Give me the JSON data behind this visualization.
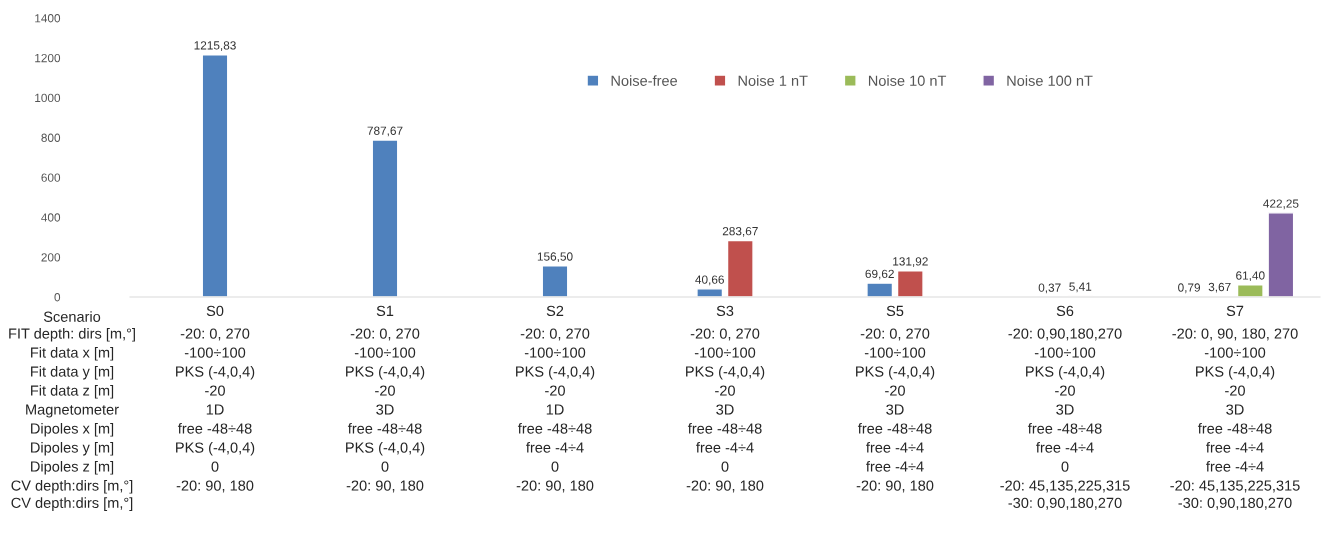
{
  "chart_data": {
    "type": "bar",
    "xlabel": "Scenario",
    "categories": [
      "S0",
      "S1",
      "S2",
      "S3",
      "S5",
      "S6",
      "S7"
    ],
    "series": [
      {
        "name": "Noise-free",
        "color": "#4f81bd",
        "values": [
          1215.83,
          787.67,
          156.5,
          40.66,
          69.62,
          0.37,
          0.79
        ],
        "value_labels": [
          "1215,83",
          "787,67",
          "156,50",
          "40,66",
          "69,62",
          "0,37",
          "0,79"
        ]
      },
      {
        "name": "Noise 1 nT",
        "color": "#c0504d",
        "values": [
          null,
          null,
          null,
          283.67,
          131.92,
          5.41,
          3.67
        ],
        "value_labels": [
          null,
          null,
          null,
          "283,67",
          "131,92",
          "5,41",
          "3,67"
        ]
      },
      {
        "name": "Noise 10 nT",
        "color": "#9bbb59",
        "values": [
          null,
          null,
          null,
          null,
          null,
          null,
          61.4
        ],
        "value_labels": [
          null,
          null,
          null,
          null,
          null,
          null,
          "61,40"
        ]
      },
      {
        "name": "Noise 100 nT",
        "color": "#8064a2",
        "values": [
          null,
          null,
          null,
          null,
          null,
          null,
          422.25
        ],
        "value_labels": [
          null,
          null,
          null,
          null,
          null,
          null,
          "422,25"
        ]
      }
    ],
    "ylim": [
      0,
      1400
    ],
    "yticks": [
      0,
      200,
      400,
      600,
      800,
      1000,
      1200,
      1400
    ],
    "grid": false,
    "legend": "top right",
    "annotations": [
      "FIT depth: dirs [m,°]",
      "-20: 0, 270",
      "-20: 0, 270",
      "-20: 0, 270",
      "-20: 0, 270",
      "-20: 0, 270",
      "-20: 0,90,180,270",
      "-20: 0, 90, 180, 270",
      "Fit data x [m]",
      "-100÷100",
      "-100÷100",
      "-100÷100",
      "-100÷100",
      "-100÷100",
      "-100÷100",
      "-100÷100",
      "Fit data y [m]",
      "PKS (-4,0,4)",
      "PKS (-4,0,4)",
      "PKS (-4,0,4)",
      "PKS (-4,0,4)",
      "PKS (-4,0,4)",
      "PKS (-4,0,4)",
      "PKS (-4,0,4)",
      "Fit data z [m]",
      "-20",
      "-20",
      "-20",
      "-20",
      "-20",
      "-20",
      "-20",
      "Magnetometer",
      "1D",
      "3D",
      "1D",
      "3D",
      "3D",
      "3D",
      "3D",
      "Dipoles x [m]",
      "free -48÷48",
      "free -48÷48",
      "free -48÷48",
      "free -48÷48",
      "free -48÷48",
      "free -48÷48",
      "free -48÷48",
      "Dipoles y [m]",
      "PKS (-4,0,4)",
      "PKS (-4,0,4)",
      "free -4÷4",
      "free -4÷4",
      "free -4÷4",
      "free -4÷4",
      "free -4÷4",
      "Dipoles z [m]",
      "0",
      "0",
      "0",
      "0",
      "free -4÷4",
      "0",
      "free -4÷4",
      "CV depth:dirs [m,°]\nCV depth:dirs [m,°]",
      "-20: 90, 180",
      "-20: 90, 180",
      "-20: 90, 180",
      "-20: 90, 180",
      "-20: 90, 180",
      "-20: 45,135,225,315\n-30: 0,90,180,270",
      "-20: 45,135,225,315\n-30: 0,90,180,270"
    ]
  }
}
